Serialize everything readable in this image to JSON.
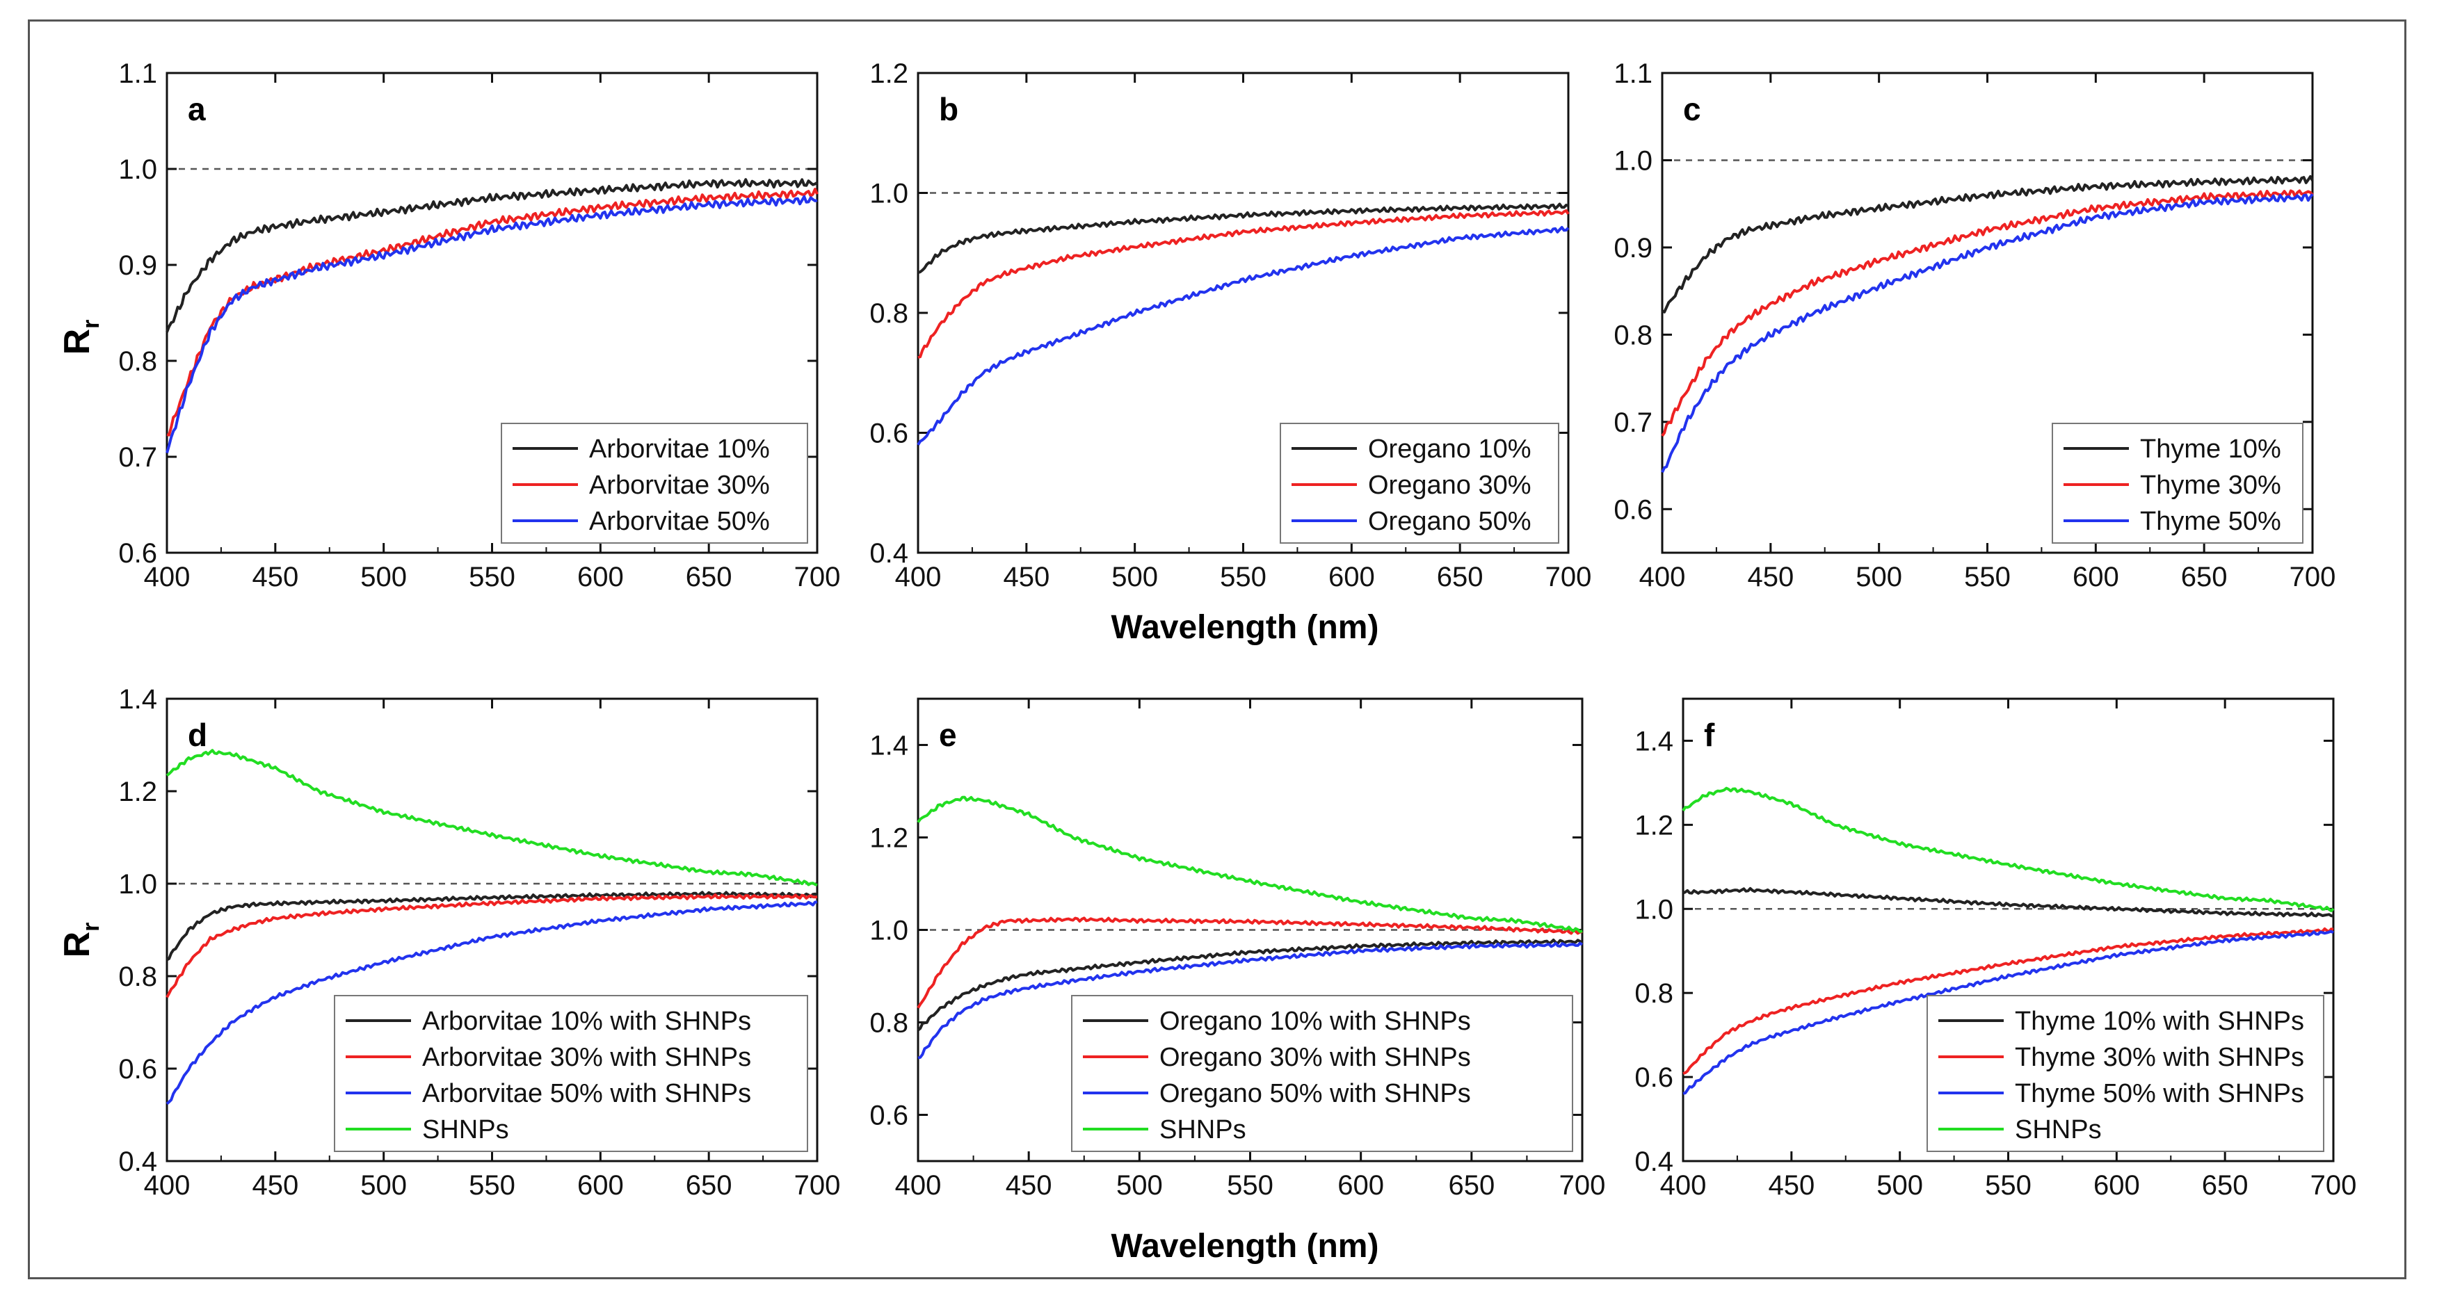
{
  "figure": {
    "xlabel": "Wavelength (nm)",
    "ylabel_main": "R",
    "ylabel_sub": "r"
  },
  "chart_data": [
    {
      "panel": "a",
      "type": "line",
      "xlim": [
        400,
        700
      ],
      "ylim": [
        0.6,
        1.1
      ],
      "xticks": [
        400,
        450,
        500,
        550,
        600,
        650,
        700
      ],
      "yticks": [
        "0.6",
        "0.7",
        "0.8",
        "0.9",
        "1.0",
        "1.1"
      ],
      "reference_line": 1.0,
      "legend_position": "bottom-right",
      "series": [
        {
          "name": "Arborvitae 10%",
          "color": "#222222",
          "x": [
            400,
            410,
            420,
            430,
            440,
            450,
            470,
            500,
            550,
            600,
            650,
            700
          ],
          "y": [
            0.83,
            0.875,
            0.905,
            0.925,
            0.935,
            0.94,
            0.947,
            0.955,
            0.97,
            0.978,
            0.985,
            0.985
          ]
        },
        {
          "name": "Arborvitae 30%",
          "color": "#ee2222",
          "x": [
            400,
            410,
            420,
            430,
            440,
            450,
            470,
            500,
            550,
            600,
            650,
            700
          ],
          "y": [
            0.72,
            0.78,
            0.835,
            0.865,
            0.878,
            0.885,
            0.9,
            0.915,
            0.945,
            0.96,
            0.97,
            0.975
          ]
        },
        {
          "name": "Arborvitae 50%",
          "color": "#2233ee",
          "x": [
            400,
            410,
            420,
            430,
            440,
            450,
            470,
            500,
            550,
            600,
            650,
            700
          ],
          "y": [
            0.705,
            0.775,
            0.83,
            0.863,
            0.877,
            0.884,
            0.897,
            0.91,
            0.937,
            0.952,
            0.963,
            0.968
          ]
        }
      ]
    },
    {
      "panel": "b",
      "type": "line",
      "xlim": [
        400,
        700
      ],
      "ylim": [
        0.4,
        1.2
      ],
      "xticks": [
        400,
        450,
        500,
        550,
        600,
        650,
        700
      ],
      "yticks": [
        "0.4",
        "0.6",
        "0.8",
        "1.0",
        "1.2"
      ],
      "reference_line": 1.0,
      "legend_position": "bottom-right",
      "series": [
        {
          "name": "Oregano 10%",
          "color": "#222222",
          "x": [
            400,
            410,
            420,
            430,
            440,
            450,
            470,
            500,
            550,
            600,
            650,
            700
          ],
          "y": [
            0.865,
            0.9,
            0.918,
            0.928,
            0.933,
            0.937,
            0.943,
            0.952,
            0.963,
            0.97,
            0.975,
            0.978
          ]
        },
        {
          "name": "Oregano 30%",
          "color": "#ee2222",
          "x": [
            400,
            410,
            420,
            430,
            440,
            450,
            470,
            500,
            550,
            600,
            650,
            700
          ],
          "y": [
            0.725,
            0.78,
            0.82,
            0.85,
            0.865,
            0.875,
            0.893,
            0.91,
            0.935,
            0.95,
            0.962,
            0.968
          ]
        },
        {
          "name": "Oregano 50%",
          "color": "#2233ee",
          "x": [
            400,
            410,
            420,
            430,
            440,
            450,
            470,
            500,
            550,
            600,
            650,
            700
          ],
          "y": [
            0.58,
            0.62,
            0.665,
            0.7,
            0.72,
            0.735,
            0.76,
            0.8,
            0.855,
            0.895,
            0.925,
            0.94
          ]
        }
      ]
    },
    {
      "panel": "c",
      "type": "line",
      "xlim": [
        400,
        700
      ],
      "ylim": [
        0.55,
        1.1
      ],
      "xticks": [
        400,
        450,
        500,
        550,
        600,
        650,
        700
      ],
      "yticks": [
        "0.6",
        "0.7",
        "0.8",
        "0.9",
        "1.0",
        "1.1"
      ],
      "reference_line": 1.0,
      "legend_position": "bottom-right",
      "series": [
        {
          "name": "Thyme 10%",
          "color": "#222222",
          "x": [
            400,
            410,
            420,
            430,
            440,
            450,
            470,
            500,
            550,
            600,
            650,
            700
          ],
          "y": [
            0.825,
            0.86,
            0.89,
            0.91,
            0.92,
            0.925,
            0.935,
            0.945,
            0.96,
            0.97,
            0.975,
            0.978
          ]
        },
        {
          "name": "Thyme 30%",
          "color": "#ee2222",
          "x": [
            400,
            410,
            420,
            430,
            440,
            450,
            470,
            500,
            550,
            600,
            650,
            700
          ],
          "y": [
            0.685,
            0.73,
            0.77,
            0.8,
            0.82,
            0.835,
            0.86,
            0.885,
            0.92,
            0.945,
            0.958,
            0.963
          ]
        },
        {
          "name": "Thyme 50%",
          "color": "#2233ee",
          "x": [
            400,
            410,
            420,
            430,
            440,
            450,
            470,
            500,
            550,
            600,
            650,
            700
          ],
          "y": [
            0.64,
            0.695,
            0.735,
            0.765,
            0.785,
            0.8,
            0.825,
            0.855,
            0.9,
            0.935,
            0.952,
            0.958
          ]
        }
      ]
    },
    {
      "panel": "d",
      "type": "line",
      "xlim": [
        400,
        700
      ],
      "ylim": [
        0.4,
        1.4
      ],
      "xticks": [
        400,
        450,
        500,
        550,
        600,
        650,
        700
      ],
      "yticks": [
        "0.4",
        "0.6",
        "0.8",
        "1.0",
        "1.2",
        "1.4"
      ],
      "reference_line": 1.0,
      "legend_position": "bottom-right",
      "series": [
        {
          "name": "Arborvitae 10% with SHNPs",
          "color": "#222222",
          "x": [
            400,
            410,
            420,
            430,
            440,
            450,
            470,
            500,
            550,
            600,
            650,
            700
          ],
          "y": [
            0.835,
            0.9,
            0.935,
            0.95,
            0.955,
            0.957,
            0.96,
            0.963,
            0.97,
            0.975,
            0.978,
            0.975
          ]
        },
        {
          "name": "Arborvitae 30% with SHNPs",
          "color": "#ee2222",
          "x": [
            400,
            410,
            420,
            430,
            440,
            450,
            470,
            500,
            550,
            600,
            650,
            700
          ],
          "y": [
            0.755,
            0.83,
            0.88,
            0.9,
            0.915,
            0.925,
            0.935,
            0.945,
            0.958,
            0.968,
            0.972,
            0.972
          ]
        },
        {
          "name": "Arborvitae 50% with SHNPs",
          "color": "#2233ee",
          "x": [
            400,
            410,
            420,
            430,
            440,
            450,
            470,
            500,
            550,
            600,
            650,
            700
          ],
          "y": [
            0.52,
            0.6,
            0.655,
            0.7,
            0.73,
            0.755,
            0.79,
            0.83,
            0.885,
            0.92,
            0.945,
            0.958
          ]
        },
        {
          "name": "SHNPs",
          "color": "#22dd22",
          "x": [
            400,
            410,
            420,
            430,
            440,
            450,
            470,
            500,
            550,
            600,
            650,
            670,
            700
          ],
          "y": [
            1.235,
            1.27,
            1.285,
            1.28,
            1.265,
            1.25,
            1.2,
            1.155,
            1.105,
            1.06,
            1.025,
            1.02,
            0.998
          ]
        }
      ]
    },
    {
      "panel": "e",
      "type": "line",
      "xlim": [
        400,
        700
      ],
      "ylim": [
        0.5,
        1.5
      ],
      "xticks": [
        400,
        450,
        500,
        550,
        600,
        650,
        700
      ],
      "yticks": [
        "0.6",
        "0.8",
        "1.0",
        "1.2",
        "1.4"
      ],
      "reference_line": 1.0,
      "legend_position": "bottom-right",
      "series": [
        {
          "name": "Oregano 10% with SHNPs",
          "color": "#222222",
          "x": [
            400,
            410,
            420,
            430,
            440,
            450,
            470,
            500,
            550,
            600,
            650,
            700
          ],
          "y": [
            0.785,
            0.83,
            0.86,
            0.88,
            0.895,
            0.905,
            0.915,
            0.93,
            0.952,
            0.965,
            0.972,
            0.975
          ]
        },
        {
          "name": "Oregano 30% with SHNPs",
          "color": "#ee2222",
          "x": [
            400,
            410,
            420,
            430,
            440,
            450,
            470,
            500,
            550,
            600,
            650,
            700
          ],
          "y": [
            0.83,
            0.91,
            0.97,
            1.005,
            1.02,
            1.02,
            1.023,
            1.02,
            1.018,
            1.012,
            1.005,
            0.995
          ]
        },
        {
          "name": "Oregano 50% with SHNPs",
          "color": "#2233ee",
          "x": [
            400,
            410,
            420,
            430,
            440,
            450,
            470,
            500,
            550,
            600,
            650,
            700
          ],
          "y": [
            0.72,
            0.785,
            0.825,
            0.85,
            0.865,
            0.875,
            0.89,
            0.91,
            0.935,
            0.955,
            0.965,
            0.968
          ]
        },
        {
          "name": "SHNPs",
          "color": "#22dd22",
          "x": [
            400,
            410,
            420,
            430,
            440,
            450,
            470,
            500,
            550,
            600,
            650,
            670,
            700
          ],
          "y": [
            1.235,
            1.27,
            1.285,
            1.28,
            1.265,
            1.25,
            1.2,
            1.155,
            1.105,
            1.06,
            1.025,
            1.02,
            0.998
          ]
        }
      ]
    },
    {
      "panel": "f",
      "type": "line",
      "xlim": [
        400,
        700
      ],
      "ylim": [
        0.4,
        1.5
      ],
      "xticks": [
        400,
        450,
        500,
        550,
        600,
        650,
        700
      ],
      "yticks": [
        "0.4",
        "0.6",
        "0.8",
        "1.0",
        "1.2",
        "1.4"
      ],
      "reference_line": 1.0,
      "legend_position": "bottom-right",
      "series": [
        {
          "name": "Thyme 10% with SHNPs",
          "color": "#222222",
          "x": [
            400,
            410,
            420,
            430,
            450,
            500,
            550,
            600,
            650,
            700
          ],
          "y": [
            1.04,
            1.04,
            1.043,
            1.045,
            1.04,
            1.025,
            1.01,
            1.0,
            0.99,
            0.985
          ]
        },
        {
          "name": "Thyme 30% with SHNPs",
          "color": "#ee2222",
          "x": [
            400,
            410,
            420,
            430,
            440,
            450,
            470,
            500,
            550,
            600,
            650,
            700
          ],
          "y": [
            0.605,
            0.66,
            0.705,
            0.73,
            0.75,
            0.765,
            0.79,
            0.825,
            0.87,
            0.91,
            0.935,
            0.95
          ]
        },
        {
          "name": "Thyme 50% with SHNPs",
          "color": "#2233ee",
          "x": [
            400,
            410,
            420,
            430,
            440,
            450,
            470,
            500,
            550,
            600,
            650,
            700
          ],
          "y": [
            0.56,
            0.605,
            0.645,
            0.675,
            0.695,
            0.71,
            0.74,
            0.78,
            0.84,
            0.89,
            0.925,
            0.945
          ]
        },
        {
          "name": "SHNPs",
          "color": "#22dd22",
          "x": [
            400,
            410,
            420,
            430,
            440,
            450,
            470,
            500,
            550,
            600,
            650,
            670,
            700
          ],
          "y": [
            1.235,
            1.27,
            1.285,
            1.28,
            1.265,
            1.25,
            1.2,
            1.155,
            1.105,
            1.06,
            1.025,
            1.02,
            0.998
          ]
        }
      ]
    }
  ]
}
